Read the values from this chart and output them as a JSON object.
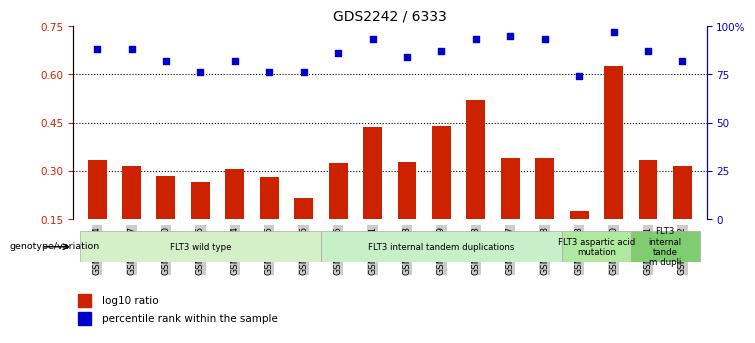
{
  "title": "GDS2242 / 6333",
  "samples": [
    "GSM48254",
    "GSM48507",
    "GSM48510",
    "GSM48546",
    "GSM48584",
    "GSM48585",
    "GSM48586",
    "GSM48255",
    "GSM48501",
    "GSM48503",
    "GSM48539",
    "GSM48543",
    "GSM48587",
    "GSM48588",
    "GSM48253",
    "GSM48350",
    "GSM48541",
    "GSM48252"
  ],
  "bar_values": [
    0.335,
    0.315,
    0.285,
    0.265,
    0.305,
    0.282,
    0.215,
    0.325,
    0.435,
    0.328,
    0.44,
    0.52,
    0.34,
    0.34,
    0.175,
    0.625,
    0.335,
    0.315
  ],
  "dot_values_pct": [
    88,
    88,
    82,
    76,
    82,
    76,
    76,
    86,
    93,
    84,
    87,
    93,
    95,
    93,
    74,
    97,
    87,
    82
  ],
  "bar_color": "#cc2200",
  "dot_color": "#0000cc",
  "ylim_left": [
    0.15,
    0.75
  ],
  "ylim_right": [
    0,
    100
  ],
  "yticks_left": [
    0.15,
    0.3,
    0.45,
    0.6,
    0.75
  ],
  "yticks_right": [
    0,
    25,
    50,
    75,
    100
  ],
  "ytick_labels_left": [
    "0.15",
    "0.30",
    "0.45",
    "0.60",
    "0.75"
  ],
  "ytick_labels_right": [
    "0",
    "25",
    "50",
    "75",
    "100%"
  ],
  "hlines": [
    0.3,
    0.45,
    0.6
  ],
  "groups": [
    {
      "label": "FLT3 wild type",
      "start": 0,
      "end": 7,
      "color": "#d4f0c8"
    },
    {
      "label": "FLT3 internal tandem duplications",
      "start": 7,
      "end": 14,
      "color": "#c8f0c8"
    },
    {
      "label": "FLT3 aspartic acid\nmutation",
      "start": 14,
      "end": 16,
      "color": "#b0e8a0"
    },
    {
      "label": "FLT3\ninternal\ntande\nm dupli",
      "start": 16,
      "end": 18,
      "color": "#80cc70"
    }
  ],
  "legend_items": [
    {
      "label": "log10 ratio",
      "color": "#cc2200"
    },
    {
      "label": "percentile rank within the sample",
      "color": "#0000cc"
    }
  ],
  "genotype_label": "genotype/variation",
  "background_color": "#ffffff"
}
